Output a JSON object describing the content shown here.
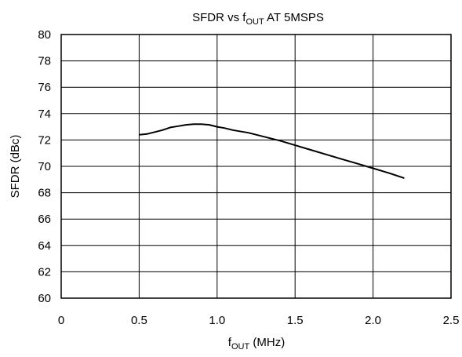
{
  "chart_data": {
    "type": "line",
    "title": "SFDR vs f",
    "title_sub": "OUT",
    "title_rest": " AT 5MSPS",
    "xlabel": "f",
    "xlabel_sub": "OUT",
    "xlabel_rest": " (MHz)",
    "ylabel": "SFDR (dBc)",
    "xlim": [
      0,
      2.5
    ],
    "ylim": [
      60,
      80
    ],
    "x_ticks": [
      0,
      0.5,
      1.0,
      1.5,
      2.0,
      2.5
    ],
    "x_tick_labels": [
      "0",
      "0.5",
      "1.0",
      "1.5",
      "2.0",
      "2.5"
    ],
    "y_ticks": [
      60,
      62,
      64,
      66,
      68,
      70,
      72,
      74,
      76,
      78,
      80
    ],
    "y_tick_labels": [
      "60",
      "62",
      "64",
      "66",
      "68",
      "70",
      "72",
      "74",
      "76",
      "78",
      "80"
    ],
    "grid": true,
    "series": [
      {
        "color": "#000000",
        "x": [
          0.5,
          0.55,
          0.6,
          0.65,
          0.7,
          0.75,
          0.8,
          0.85,
          0.9,
          0.95,
          1.0,
          1.05,
          1.1,
          1.2,
          1.3,
          1.4,
          1.5,
          1.6,
          1.7,
          1.8,
          1.9,
          2.0,
          2.1,
          2.2
        ],
        "y": [
          72.4,
          72.45,
          72.6,
          72.75,
          72.95,
          73.05,
          73.15,
          73.2,
          73.2,
          73.15,
          73.0,
          72.9,
          72.75,
          72.55,
          72.25,
          71.95,
          71.6,
          71.25,
          70.9,
          70.55,
          70.2,
          69.85,
          69.5,
          69.1
        ]
      }
    ]
  }
}
